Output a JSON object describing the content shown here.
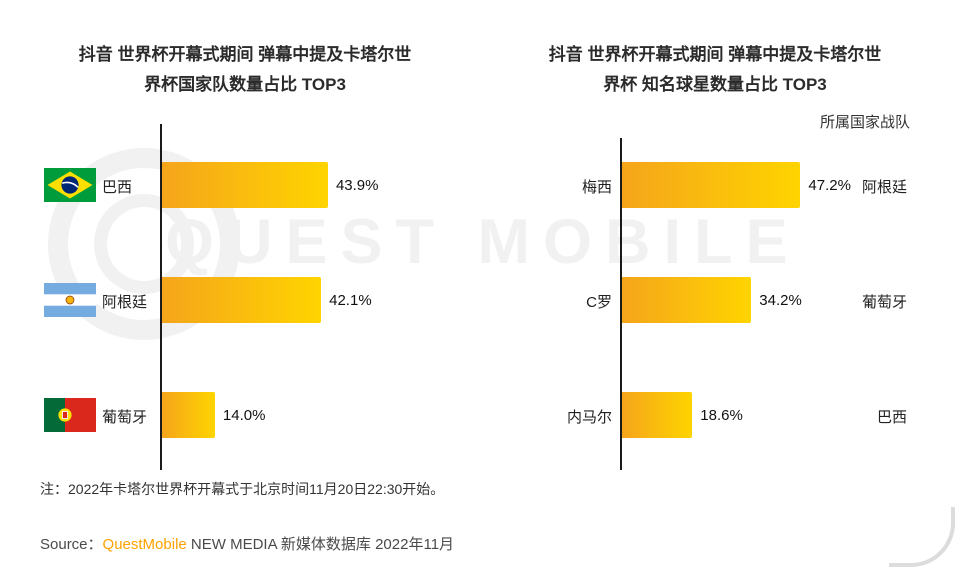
{
  "watermark": "QUEST MOBILE",
  "accent_color": "#FFA200",
  "bar_gradient": {
    "start": "#F5A51B",
    "end": "#FFD400"
  },
  "chart_data": [
    {
      "type": "bar",
      "orientation": "horizontal",
      "title": "抖音 世界杯开幕式期间 弹幕中提及卡塔尔世界杯国家队数量占比 TOP3",
      "title_lines": [
        "抖音 世界杯开幕式期间 弹幕中提及卡塔尔世",
        "界杯国家队数量占比 TOP3"
      ],
      "categories": [
        "巴西",
        "阿根廷",
        "葡萄牙"
      ],
      "values": [
        43.9,
        42.1,
        14.0
      ],
      "value_labels": [
        "43.9%",
        "42.1%",
        "14.0%"
      ],
      "flags": [
        "brazil-flag",
        "argentina-flag",
        "portugal-flag"
      ],
      "unit": "%",
      "xlim": [
        0,
        50
      ],
      "grid": false,
      "legend_position": "none"
    },
    {
      "type": "bar",
      "orientation": "horizontal",
      "title": "抖音 世界杯开幕式期间 弹幕中提及卡塔尔世界杯 知名球星数量占比 TOP3",
      "title_lines": [
        "抖音 世界杯开幕式期间 弹幕中提及卡塔尔世",
        "界杯 知名球星数量占比 TOP3"
      ],
      "categories": [
        "梅西",
        "C罗",
        "内马尔"
      ],
      "values": [
        47.2,
        34.2,
        18.6
      ],
      "value_labels": [
        "47.2%",
        "34.2%",
        "18.6%"
      ],
      "annotation_header": "所属国家战队",
      "annotations": [
        "阿根廷",
        "葡萄牙",
        "巴西"
      ],
      "unit": "%",
      "xlim": [
        0,
        50
      ],
      "grid": false,
      "legend_position": "none"
    }
  ],
  "note": "注：2022年卡塔尔世界杯开幕式于北京时间11月20日22:30开始。",
  "source": {
    "label": "Source：",
    "brand": "QuestMobile",
    "rest": " NEW MEDIA 新媒体数据库 2022年11月"
  }
}
